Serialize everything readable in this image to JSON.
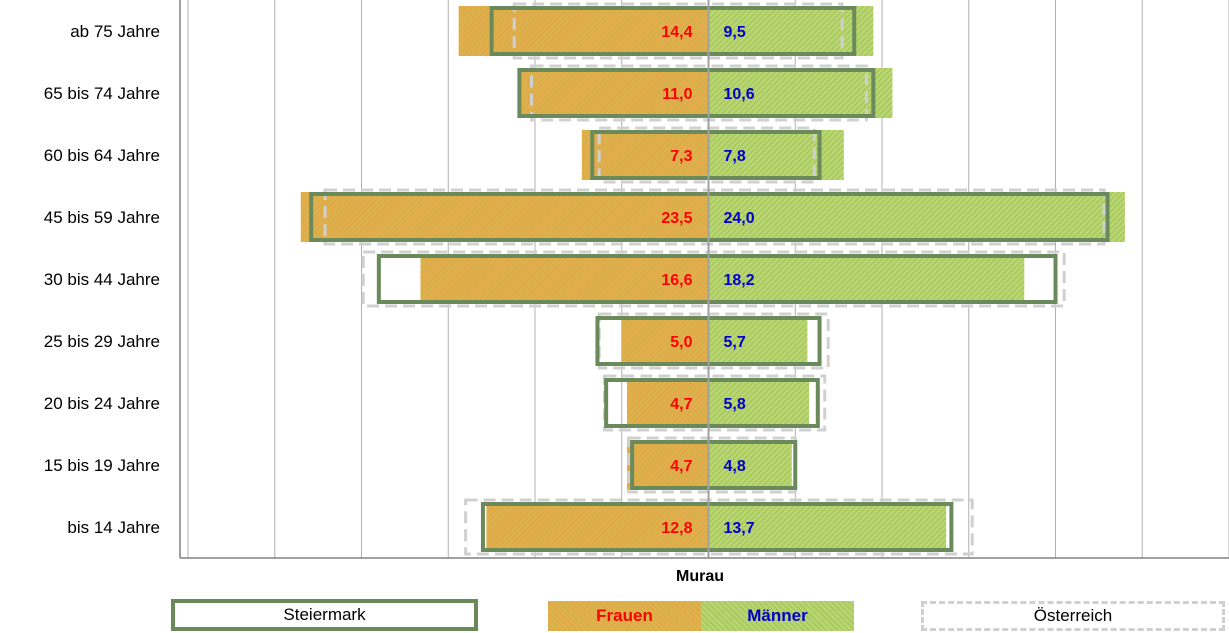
{
  "chart_data": {
    "type": "bar",
    "orientation": "horizontal-population-pyramid",
    "title": "Murau",
    "categories": [
      "ab 75 Jahre",
      "65 bis 74 Jahre",
      "60 bis 64 Jahre",
      "45 bis 59 Jahre",
      "30 bis 44 Jahre",
      "25 bis 29 Jahre",
      "20 bis 24 Jahre",
      "15 bis 19 Jahre",
      "bis 14 Jahre"
    ],
    "series": [
      {
        "name": "Frauen",
        "side": "left",
        "values": [
          14.4,
          11.0,
          7.3,
          23.5,
          16.6,
          5.0,
          4.7,
          4.7,
          12.8
        ],
        "labels": [
          "14,4",
          "11,0",
          "7,3",
          "23,5",
          "16,6",
          "5,0",
          "4,7",
          "4,7",
          "12,8"
        ],
        "color": "#e8a64a",
        "label_color": "#ff0000"
      },
      {
        "name": "Männer",
        "side": "right",
        "values": [
          9.5,
          10.6,
          7.8,
          24.0,
          18.2,
          5.7,
          5.8,
          4.8,
          13.7
        ],
        "labels": [
          "9,5",
          "10,6",
          "7,8",
          "24,0",
          "18,2",
          "5,7",
          "5,8",
          "4,8",
          "13,7"
        ],
        "color": "#a8cc5c",
        "label_color": "#0000cc"
      },
      {
        "name": "Steiermark",
        "type": "outline",
        "style": "solid",
        "color": "#6a8a5c",
        "frauen": [
          12.5,
          10.9,
          6.7,
          22.9,
          19.0,
          6.4,
          5.9,
          4.4,
          13.0
        ],
        "maenner": [
          8.4,
          9.5,
          6.4,
          23.0,
          20.0,
          6.4,
          6.3,
          5.0,
          14.0
        ]
      },
      {
        "name": "Österreich",
        "type": "outline",
        "style": "dashed",
        "color": "#d0d0d0",
        "frauen": [
          11.2,
          10.2,
          6.3,
          22.1,
          19.9,
          6.3,
          6.0,
          4.6,
          14.0
        ],
        "maenner": [
          7.7,
          9.1,
          6.1,
          22.8,
          20.5,
          6.9,
          6.7,
          5.0,
          15.2
        ]
      }
    ],
    "xlim": [
      -30,
      30
    ],
    "grid": true,
    "legend": {
      "placement": "bottom",
      "title": "Murau",
      "items": [
        "Steiermark",
        "Frauen",
        "Männer",
        "Österreich"
      ]
    }
  },
  "legend": {
    "title": "Murau",
    "steiermark": "Steiermark",
    "frauen": "Frauen",
    "maenner": "Männer",
    "oesterreich": "Österreich"
  }
}
